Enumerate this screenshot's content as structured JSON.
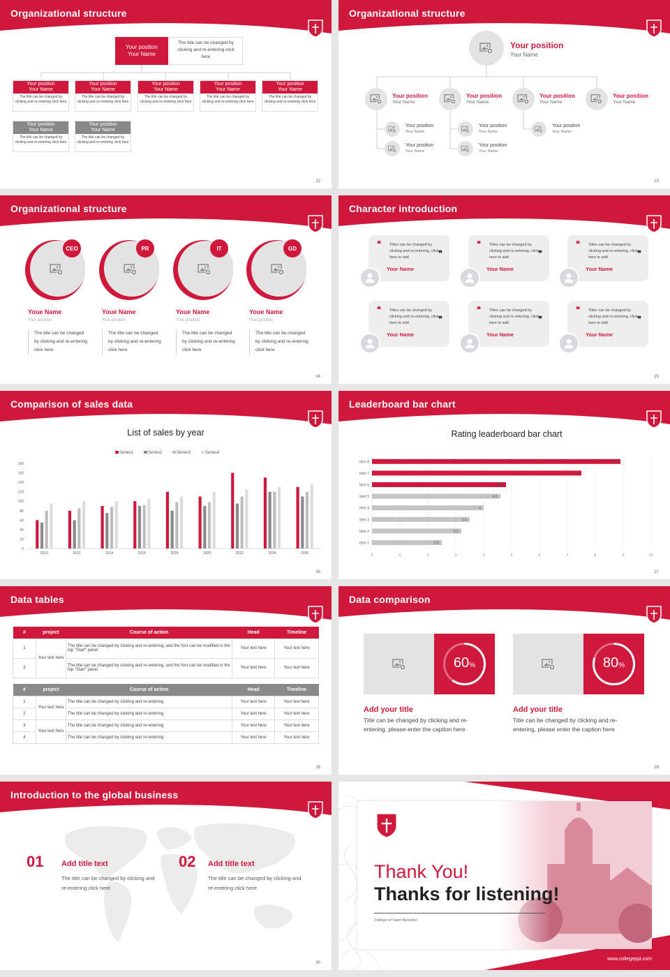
{
  "colors": {
    "accent": "#d0183c",
    "gray": "#8a8a8a",
    "light": "#e3e3e3"
  },
  "s22": {
    "title": "Organizational structure",
    "page": "22",
    "top": {
      "position": "Your position",
      "name": "Your Name",
      "note": "The title can be changed by clicking and re-entering click here"
    },
    "boxes": [
      {
        "position": "Your position",
        "name": "Your Name",
        "desc": "The title can be changed by clicking and re-entering click here"
      },
      {
        "position": "Your position",
        "name": "Your Name",
        "desc": "The title can be changed by clicking and re-entering click here"
      },
      {
        "position": "Your position",
        "name": "Your Name",
        "desc": "The title can be changed by clicking and re-entering click here"
      },
      {
        "position": "Your position",
        "name": "Your Name",
        "desc": "The title can be changed by clicking and re-entering click here"
      },
      {
        "position": "Your position",
        "name": "Your Name",
        "desc": "The title can be changed by clicking and re-entering click here"
      }
    ],
    "gray_boxes": [
      {
        "position": "Your position",
        "name": "Your Name",
        "desc": "The title can be changed by clicking and re-entering click here"
      },
      {
        "position": "Your position",
        "name": "Your Name",
        "desc": "The title can be changed by clicking and re-entering click here"
      }
    ]
  },
  "s23": {
    "title": "Organizational structure",
    "page": "23",
    "top": {
      "position": "Your position",
      "name": "Your Name"
    },
    "mid": [
      {
        "position": "Your position",
        "name": "Your Name"
      },
      {
        "position": "Your position",
        "name": "Your Name"
      },
      {
        "position": "Your position",
        "name": "Your Name"
      },
      {
        "position": "Your position",
        "name": "Your Name"
      }
    ],
    "sub": [
      {
        "position": "Your position",
        "name": "Your Name"
      },
      {
        "position": "Your position",
        "name": "Your Name"
      },
      {
        "position": "Your position",
        "name": "Your Name"
      },
      {
        "position": "Your position",
        "name": "Your Name"
      },
      {
        "position": "Your position",
        "name": "Your Name"
      }
    ]
  },
  "s24": {
    "title": "Organizational structure",
    "page": "24",
    "people": [
      {
        "tag": "CEO",
        "name": "Youe Name",
        "position": "Your position",
        "desc": "The title can be changed by clicking and re-entering click here"
      },
      {
        "tag": "PR",
        "name": "Youe Name",
        "position": "Your position",
        "desc": "The title can be changed by clicking and re-entering click here"
      },
      {
        "tag": "IT",
        "name": "Youe Name",
        "position": "Your position",
        "desc": "The title can be changed by clicking and re-entering click here"
      },
      {
        "tag": "GD",
        "name": "Youe Name",
        "position": "Your position",
        "desc": "The title can be changed by clicking and re-entering click here"
      }
    ]
  },
  "s25": {
    "title": "Character introduction",
    "page": "25",
    "cards": [
      {
        "text": "Titles can be changed by clicking and re-entering, click here to add",
        "name": "Your Name"
      },
      {
        "text": "Titles can be changed by clicking and re-entering, click here to add",
        "name": "Your Name"
      },
      {
        "text": "Titles can be changed by clicking and re-entering, click here to add",
        "name": "Your Name"
      },
      {
        "text": "Titles can be changed by clicking and re-entering, click here to add",
        "name": "Your Name"
      },
      {
        "text": "Titles can be changed by clicking and re-entering, click here to add",
        "name": "Your Name"
      },
      {
        "text": "Titles can be changed by clicking and re-entering, click here to add",
        "name": "Your Name"
      }
    ]
  },
  "s26": {
    "title": "Comparison of sales data",
    "page": "26"
  },
  "s27": {
    "title": "Leaderboard bar chart",
    "page": "27"
  },
  "chart_data": [
    {
      "type": "bar",
      "title": "List of sales by year",
      "categories": [
        "2010",
        "2012",
        "2014",
        "2016",
        "2018",
        "2020",
        "2022",
        "2024",
        "2026"
      ],
      "series": [
        {
          "name": "Series1",
          "color": "#d0183c",
          "values": [
            60,
            80,
            90,
            100,
            120,
            110,
            160,
            150,
            130
          ]
        },
        {
          "name": "Series2",
          "color": "#8a8a8a",
          "values": [
            55,
            60,
            75,
            90,
            80,
            90,
            95,
            120,
            110
          ]
        },
        {
          "name": "Series3",
          "color": "#bdbdbd",
          "values": [
            80,
            85,
            88,
            92,
            98,
            98,
            110,
            120,
            120
          ]
        },
        {
          "name": "Series4",
          "color": "#dcdcdc",
          "values": [
            95,
            100,
            100,
            105,
            110,
            120,
            125,
            130,
            135
          ]
        }
      ],
      "ylim": [
        0,
        180
      ],
      "yticks": [
        "0",
        "20",
        "40",
        "60",
        "80",
        "100",
        "120",
        "140",
        "160",
        "180"
      ],
      "legend": "top",
      "grid": false
    },
    {
      "type": "bar",
      "orientation": "horizontal",
      "title": "Rating leaderboard bar chart",
      "categories": [
        "Item 8",
        "Item 7",
        "Item 6",
        "Item 5",
        "Item 4",
        "Item 3",
        "Item 2",
        "Item 1"
      ],
      "values": [
        8.9,
        7.5,
        4.8,
        4.6,
        4,
        3.5,
        3.2,
        2.5
      ],
      "value_labels": [
        "8.9",
        "7.5",
        "4.8",
        "4.6",
        "4",
        "3.5",
        "3.2",
        "2.5"
      ],
      "colors": [
        "#d0183c",
        "#d0183c",
        "#d0183c",
        "#c4c4c4",
        "#c4c4c4",
        "#c4c4c4",
        "#c4c4c4",
        "#c4c4c4"
      ],
      "xlim": [
        0,
        10
      ],
      "xticks": [
        "0",
        "1",
        "2",
        "3",
        "4",
        "5",
        "6",
        "7",
        "8",
        "9",
        "10"
      ],
      "grid": true
    }
  ],
  "s28": {
    "title": "Data tables",
    "page": "28",
    "t1": {
      "headers": [
        "#",
        "project",
        "Course of action",
        "Head",
        "Timeline"
      ],
      "project": "Your text here",
      "rows": [
        {
          "n": "1",
          "action": "The title can be changed by clicking and re-entering, and the font can be modified in the top \"Start\" panel",
          "head": "Your text here",
          "time": "Your text here"
        },
        {
          "n": "2",
          "action": "The title can be changed by clicking and re-entering, and the font can be modified in the top \"Start\" panel",
          "head": "Your text here",
          "time": "Your text here"
        }
      ]
    },
    "t2": {
      "headers": [
        "#",
        "project",
        "Course of action",
        "Head",
        "Timeline"
      ],
      "project1": "Your text here",
      "project2": "Your text here",
      "rows": [
        {
          "n": "1",
          "action": "The title can be changed by clicking and re-entering",
          "head": "Your text here",
          "time": "Your text here"
        },
        {
          "n": "2",
          "action": "The title can be changed by clicking and re-entering",
          "head": "Your text here",
          "time": "Your text here"
        },
        {
          "n": "3",
          "action": "The title can be changed by clicking and re-entering",
          "head": "Your text here",
          "time": "Your text here"
        },
        {
          "n": "4",
          "action": "The title can be changed by clicking and re-entering",
          "head": "Your text here",
          "time": "Your text here"
        }
      ]
    }
  },
  "s29": {
    "title": "Data comparison",
    "page": "29",
    "items": [
      {
        "pct": "60",
        "unit": "%",
        "value": 0.6,
        "title": "Add your title",
        "desc": "Title can be changed by clicking and re-entering, please enter the caption here"
      },
      {
        "pct": "80",
        "unit": "%",
        "value": 0.8,
        "title": "Add your title",
        "desc": "Title can be changed by clicking and re-entering, please enter the caption here"
      }
    ]
  },
  "s30": {
    "title": "Introduction to the global business",
    "page": "30",
    "items": [
      {
        "num": "01",
        "title": "Add title text",
        "desc": "The title can be changed by clicking and re-entering click here"
      },
      {
        "num": "02",
        "title": "Add title text",
        "desc": "The title can be changed by clicking and re-entering click here"
      }
    ]
  },
  "s31": {
    "thanks": "Thank You!",
    "listening": "Thanks for listening!",
    "college": "College of Saint Benedict",
    "url": "www.collegeppt.com"
  }
}
